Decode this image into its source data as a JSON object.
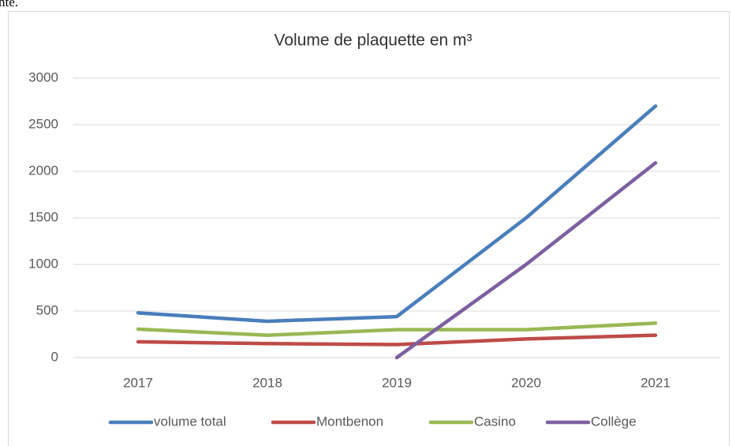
{
  "fragment_text": "nte.",
  "chart_data": {
    "type": "line",
    "title": "Volume de plaquette en m³",
    "categories": [
      "2017",
      "2018",
      "2019",
      "2020",
      "2021"
    ],
    "series": [
      {
        "name": "volume total",
        "color": "#4a7ebb",
        "values": [
          480,
          390,
          440,
          1500,
          2700
        ]
      },
      {
        "name": "Montbenon",
        "color": "#be4b48",
        "values": [
          170,
          150,
          140,
          200,
          240
        ]
      },
      {
        "name": "Casino",
        "color": "#98b954",
        "values": [
          305,
          240,
          300,
          300,
          370
        ]
      },
      {
        "name": "Collège",
        "color": "#7d60a0",
        "values": [
          null,
          null,
          0,
          1000,
          2090
        ]
      }
    ],
    "ylim": [
      0,
      3000
    ],
    "yticks": [
      0,
      500,
      1000,
      1500,
      2000,
      2500,
      3000
    ],
    "grid": true,
    "legend": "bottom"
  }
}
